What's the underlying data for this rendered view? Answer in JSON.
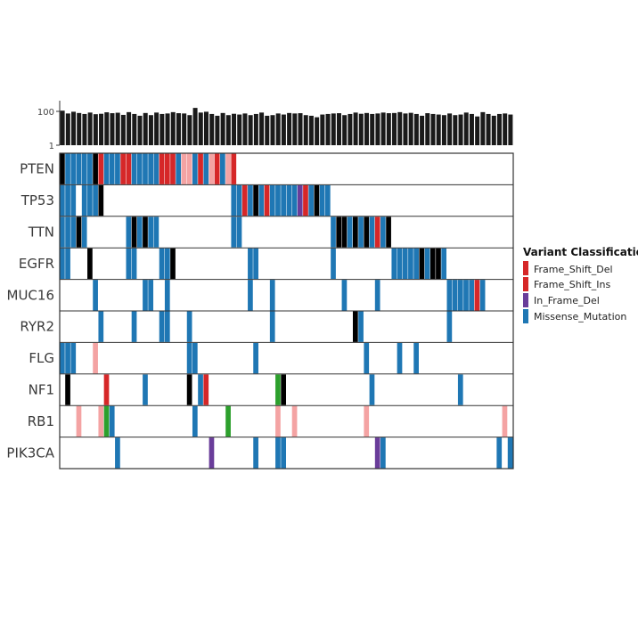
{
  "chart_data": {
    "type": "heatmap",
    "subtype": "oncoplot",
    "n_samples": 82,
    "top_barplot": {
      "ylabel_ticks": [
        "100",
        "1"
      ],
      "scale": "log",
      "color": "#1a1a1a",
      "values": [
        110,
        75,
        95,
        80,
        70,
        85,
        68,
        72,
        88,
        78,
        83,
        62,
        90,
        70,
        55,
        80,
        60,
        85,
        70,
        75,
        90,
        78,
        75,
        60,
        160,
        85,
        95,
        70,
        55,
        80,
        60,
        72,
        65,
        75,
        60,
        70,
        85,
        55,
        60,
        75,
        65,
        80,
        75,
        78,
        60,
        55,
        45,
        65,
        70,
        75,
        78,
        60,
        70,
        85,
        72,
        80,
        70,
        75,
        85,
        78,
        80,
        90,
        75,
        82,
        70,
        55,
        78,
        70,
        65,
        60,
        75,
        60,
        65,
        85,
        70,
        50,
        90,
        70,
        55,
        70,
        75,
        65
      ]
    },
    "genes": [
      "PTEN",
      "TP53",
      "TTN",
      "EGFR",
      "MUC16",
      "RYR2",
      "FLG",
      "NF1",
      "RB1",
      "PIK3CA"
    ],
    "legend": {
      "title": "Variant Classification",
      "entries": [
        {
          "label": "Frame_Shift_Del",
          "color": "#d62728"
        },
        {
          "label": "Frame_Shift_Ins",
          "color": "#d62728"
        },
        {
          "label": "In_Frame_Del",
          "color": "#6a3d9a"
        },
        {
          "label": "Missense_Mutation",
          "color": "#1f77b4"
        }
      ]
    },
    "extra_colors": {
      "Nonsense_Mutation": "#000000",
      "Splice_Site": "#f4a3a3",
      "Multi_Hit": "#2ca02c",
      "Background": "#ffffff",
      "Border": "#333333"
    },
    "mutations": {
      "PTEN": [
        [
          0,
          "K"
        ],
        [
          1,
          "B"
        ],
        [
          2,
          "B"
        ],
        [
          3,
          "B"
        ],
        [
          4,
          "B"
        ],
        [
          5,
          "B"
        ],
        [
          6,
          "K"
        ],
        [
          7,
          "R"
        ],
        [
          8,
          "B"
        ],
        [
          9,
          "B"
        ],
        [
          10,
          "B"
        ],
        [
          11,
          "R"
        ],
        [
          12,
          "R"
        ],
        [
          13,
          "B"
        ],
        [
          14,
          "B"
        ],
        [
          15,
          "B"
        ],
        [
          16,
          "B"
        ],
        [
          17,
          "B"
        ],
        [
          18,
          "R"
        ],
        [
          19,
          "R"
        ],
        [
          20,
          "R"
        ],
        [
          21,
          "B"
        ],
        [
          22,
          "P"
        ],
        [
          23,
          "P"
        ],
        [
          24,
          "B"
        ],
        [
          25,
          "R"
        ],
        [
          26,
          "B"
        ],
        [
          27,
          "P"
        ],
        [
          28,
          "R"
        ],
        [
          29,
          "B"
        ],
        [
          30,
          "P"
        ],
        [
          31,
          "R"
        ]
      ],
      "TP53": [
        [
          0,
          "B"
        ],
        [
          1,
          "B"
        ],
        [
          2,
          "B"
        ],
        [
          4,
          "B"
        ],
        [
          5,
          "B"
        ],
        [
          6,
          "B"
        ],
        [
          7,
          "K"
        ],
        [
          31,
          "B"
        ],
        [
          32,
          "B"
        ],
        [
          33,
          "R"
        ],
        [
          34,
          "B"
        ],
        [
          35,
          "K"
        ],
        [
          36,
          "B"
        ],
        [
          37,
          "R"
        ],
        [
          38,
          "B"
        ],
        [
          39,
          "B"
        ],
        [
          40,
          "B"
        ],
        [
          41,
          "B"
        ],
        [
          42,
          "B"
        ],
        [
          43,
          "V"
        ],
        [
          44,
          "R"
        ],
        [
          45,
          "B"
        ],
        [
          46,
          "K"
        ],
        [
          47,
          "B"
        ],
        [
          48,
          "B"
        ]
      ],
      "TTN": [
        [
          0,
          "B"
        ],
        [
          1,
          "B"
        ],
        [
          2,
          "B"
        ],
        [
          3,
          "K"
        ],
        [
          4,
          "B"
        ],
        [
          12,
          "B"
        ],
        [
          13,
          "K"
        ],
        [
          14,
          "B"
        ],
        [
          15,
          "K"
        ],
        [
          16,
          "B"
        ],
        [
          17,
          "B"
        ],
        [
          31,
          "B"
        ],
        [
          32,
          "B"
        ],
        [
          49,
          "B"
        ],
        [
          50,
          "K"
        ],
        [
          51,
          "K"
        ],
        [
          52,
          "B"
        ],
        [
          53,
          "K"
        ],
        [
          54,
          "B"
        ],
        [
          55,
          "K"
        ],
        [
          56,
          "B"
        ],
        [
          57,
          "R"
        ],
        [
          58,
          "B"
        ],
        [
          59,
          "K"
        ]
      ],
      "EGFR": [
        [
          0,
          "B"
        ],
        [
          1,
          "B"
        ],
        [
          5,
          "K"
        ],
        [
          12,
          "B"
        ],
        [
          13,
          "B"
        ],
        [
          18,
          "B"
        ],
        [
          19,
          "B"
        ],
        [
          20,
          "K"
        ],
        [
          34,
          "B"
        ],
        [
          35,
          "B"
        ],
        [
          49,
          "B"
        ],
        [
          60,
          "B"
        ],
        [
          61,
          "B"
        ],
        [
          62,
          "B"
        ],
        [
          63,
          "B"
        ],
        [
          64,
          "B"
        ],
        [
          65,
          "K"
        ],
        [
          66,
          "B"
        ],
        [
          67,
          "K"
        ],
        [
          68,
          "K"
        ],
        [
          69,
          "B"
        ]
      ],
      "MUC16": [
        [
          6,
          "B"
        ],
        [
          15,
          "B"
        ],
        [
          16,
          "B"
        ],
        [
          19,
          "B"
        ],
        [
          34,
          "B"
        ],
        [
          38,
          "B"
        ],
        [
          51,
          "B"
        ],
        [
          57,
          "B"
        ],
        [
          70,
          "B"
        ],
        [
          71,
          "B"
        ],
        [
          72,
          "B"
        ],
        [
          73,
          "B"
        ],
        [
          74,
          "B"
        ],
        [
          75,
          "R"
        ],
        [
          76,
          "B"
        ]
      ],
      "RYR2": [
        [
          7,
          "B"
        ],
        [
          13,
          "B"
        ],
        [
          18,
          "B"
        ],
        [
          19,
          "B"
        ],
        [
          23,
          "B"
        ],
        [
          38,
          "B"
        ],
        [
          53,
          "K"
        ],
        [
          54,
          "B"
        ],
        [
          70,
          "B"
        ]
      ],
      "FLG": [
        [
          0,
          "B"
        ],
        [
          1,
          "B"
        ],
        [
          2,
          "B"
        ],
        [
          6,
          "P"
        ],
        [
          23,
          "B"
        ],
        [
          24,
          "B"
        ],
        [
          35,
          "B"
        ],
        [
          55,
          "B"
        ],
        [
          61,
          "B"
        ],
        [
          64,
          "B"
        ]
      ],
      "NF1": [
        [
          1,
          "K"
        ],
        [
          8,
          "R"
        ],
        [
          15,
          "B"
        ],
        [
          23,
          "K"
        ],
        [
          25,
          "B"
        ],
        [
          26,
          "R"
        ],
        [
          39,
          "G"
        ],
        [
          40,
          "K"
        ],
        [
          56,
          "B"
        ],
        [
          72,
          "B"
        ]
      ],
      "RB1": [
        [
          3,
          "P"
        ],
        [
          7,
          "P"
        ],
        [
          8,
          "G"
        ],
        [
          9,
          "B"
        ],
        [
          24,
          "B"
        ],
        [
          30,
          "G"
        ],
        [
          39,
          "P"
        ],
        [
          42,
          "P"
        ],
        [
          55,
          "P"
        ],
        [
          80,
          "P"
        ]
      ],
      "PIK3CA": [
        [
          10,
          "B"
        ],
        [
          27,
          "V"
        ],
        [
          35,
          "B"
        ],
        [
          39,
          "B"
        ],
        [
          40,
          "B"
        ],
        [
          57,
          "V"
        ],
        [
          58,
          "B"
        ],
        [
          79,
          "B"
        ],
        [
          81,
          "B"
        ]
      ]
    },
    "color_codes": {
      "B": "#1f77b4",
      "R": "#d62728",
      "K": "#000000",
      "P": "#f4a3a3",
      "V": "#6a3d9a",
      "G": "#2ca02c"
    }
  }
}
